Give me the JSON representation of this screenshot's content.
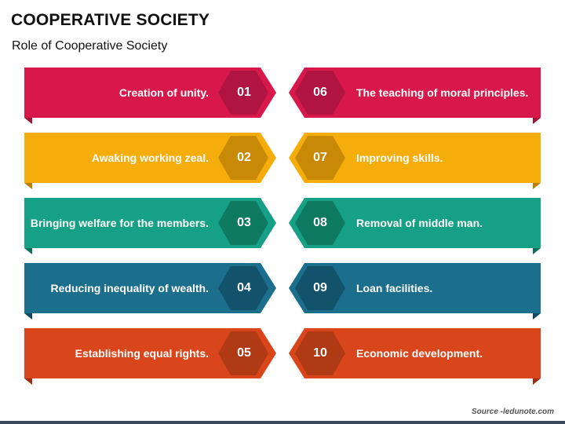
{
  "title": "COOPERATIVE SOCIETY",
  "subtitle": "Role of Cooperative Society",
  "source": "Source -ledunote.com",
  "rows": [
    {
      "left": {
        "num": "01",
        "text": "Creation of unity."
      },
      "right": {
        "num": "06",
        "text": "The teaching of moral principles."
      },
      "color": "#d8174a",
      "dark": "#a31238",
      "hex": "#b01440"
    },
    {
      "left": {
        "num": "02",
        "text": "Awaking working zeal."
      },
      "right": {
        "num": "07",
        "text": "Improving skills."
      },
      "color": "#f5ad0c",
      "dark": "#b97f05",
      "hex": "#c88a06"
    },
    {
      "left": {
        "num": "03",
        "text": "Bringing welfare for the members."
      },
      "right": {
        "num": "08",
        "text": "Removal of middle man."
      },
      "color": "#16a085",
      "dark": "#0e6f5c",
      "hex": "#0f7a62"
    },
    {
      "left": {
        "num": "04",
        "text": "Reducing inequality of wealth."
      },
      "right": {
        "num": "09",
        "text": "Loan facilities."
      },
      "color": "#1c6f8c",
      "dark": "#114a60",
      "hex": "#12536b"
    },
    {
      "left": {
        "num": "05",
        "text": "Establishing equal rights."
      },
      "right": {
        "num": "10",
        "text": "Economic development."
      },
      "color": "#d9461b",
      "dark": "#9d2f10",
      "hex": "#b03a13"
    }
  ]
}
